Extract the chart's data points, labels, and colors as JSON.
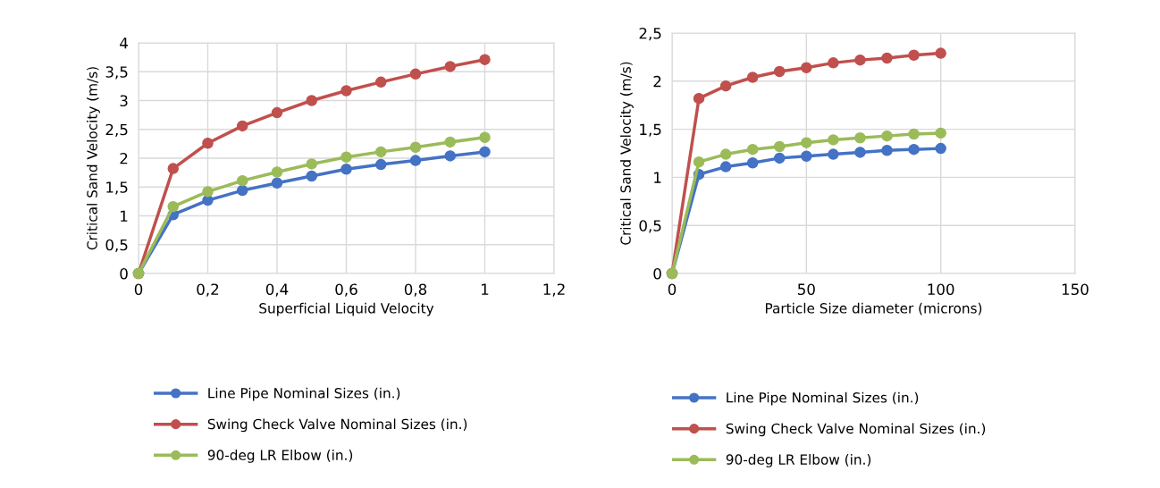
{
  "chart_data": [
    {
      "type": "line",
      "xlabel": "Superficial Liquid Velocity",
      "ylabel": "Critical Sand Velocity (m/s)",
      "x": [
        0,
        0.1,
        0.2,
        0.3,
        0.4,
        0.5,
        0.6,
        0.7,
        0.8,
        0.9,
        1
      ],
      "series": [
        {
          "name": "Line Pipe Nominal Sizes (in.)",
          "color": "#4472c4",
          "values": [
            0,
            1.02,
            1.27,
            1.44,
            1.57,
            1.69,
            1.81,
            1.89,
            1.96,
            2.04,
            2.11
          ]
        },
        {
          "name": "Swing Check Valve Nominal Sizes (in.)",
          "color": "#c0504d",
          "values": [
            0,
            1.82,
            2.26,
            2.56,
            2.79,
            3.0,
            3.17,
            3.32,
            3.46,
            3.59,
            3.71
          ]
        },
        {
          "name": "90-deg LR Elbow (in.)",
          "color": "#9bbb59",
          "values": [
            0,
            1.16,
            1.42,
            1.61,
            1.76,
            1.9,
            2.02,
            2.11,
            2.19,
            2.28,
            2.36
          ]
        }
      ],
      "xlim": [
        0,
        1.2
      ],
      "xticks": [
        0,
        {
          "value": 0.2,
          "label": "0,2"
        },
        {
          "value": 0.4,
          "label": "0,4"
        },
        {
          "value": 0.6,
          "label": "0,6"
        },
        {
          "value": 0.8,
          "label": "0,8"
        },
        1,
        {
          "value": 1.2,
          "label": "1,2"
        }
      ],
      "ylim": [
        0,
        4
      ],
      "yticks": [
        0,
        {
          "value": 0.5,
          "label": "0,5"
        },
        1,
        {
          "value": 1.5,
          "label": "1,5"
        },
        2,
        {
          "value": 2.5,
          "label": "2,5"
        },
        3,
        {
          "value": 3.5,
          "label": "3,5"
        },
        4
      ],
      "grid": true,
      "legend": "bottom",
      "marker": "circle",
      "line_style": "solid"
    },
    {
      "type": "line",
      "xlabel": "Particle Size diameter (microns)",
      "ylabel": "Critical Sand Velocity (m/s)",
      "x": [
        0,
        10,
        20,
        30,
        40,
        50,
        60,
        70,
        80,
        90,
        100
      ],
      "series": [
        {
          "name": "Line Pipe Nominal Sizes (in.)",
          "color": "#4472c4",
          "values": [
            0,
            1.03,
            1.11,
            1.15,
            1.2,
            1.22,
            1.24,
            1.26,
            1.28,
            1.29,
            1.3
          ]
        },
        {
          "name": "Swing Check Valve Nominal Sizes (in.)",
          "color": "#c0504d",
          "values": [
            0,
            1.82,
            1.95,
            2.04,
            2.1,
            2.14,
            2.19,
            2.22,
            2.24,
            2.27,
            2.29
          ]
        },
        {
          "name": "90-deg LR Elbow (in.)",
          "color": "#9bbb59",
          "values": [
            0,
            1.16,
            1.24,
            1.29,
            1.32,
            1.36,
            1.39,
            1.41,
            1.43,
            1.45,
            1.46
          ]
        }
      ],
      "xlim": [
        0,
        150
      ],
      "xticks": [
        0,
        50,
        100,
        150
      ],
      "ylim": [
        0,
        2.5
      ],
      "yticks": [
        0,
        {
          "value": 0.5,
          "label": "0,5"
        },
        1,
        {
          "value": 1.5,
          "label": "1,5"
        },
        2,
        {
          "value": 2.5,
          "label": "2,5"
        }
      ],
      "grid": true,
      "legend": "bottom",
      "marker": "circle",
      "line_style": "solid"
    }
  ]
}
